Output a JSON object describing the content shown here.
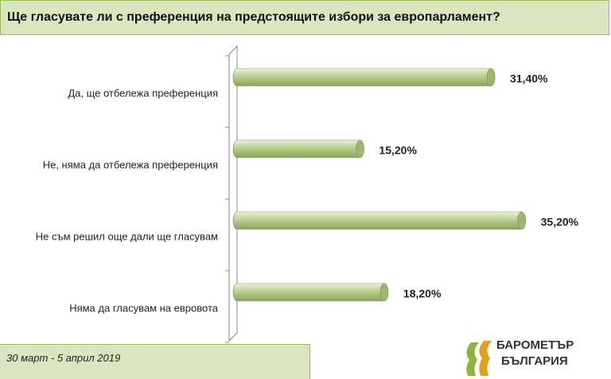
{
  "chart_data": {
    "type": "bar",
    "orientation": "horizontal",
    "title": "Ще гласувате ли с преференция на предстоящите избори за европарламент?",
    "subtitle": "30 март - 5 април 2019",
    "categories": [
      "Да, ще отбележа преференция",
      "Не, няма да отбележа преференция",
      "Не съм решил още дали ще гласувам",
      "Няма да гласувам на евровота"
    ],
    "values": [
      31.4,
      15.2,
      35.2,
      18.2
    ],
    "value_labels": [
      "31,40%",
      "15,20%",
      "35,20%",
      "18,20%"
    ],
    "color": "#c3d69b",
    "logo": [
      "БАРОМЕТЪР",
      "БЪЛГАРИЯ"
    ]
  }
}
